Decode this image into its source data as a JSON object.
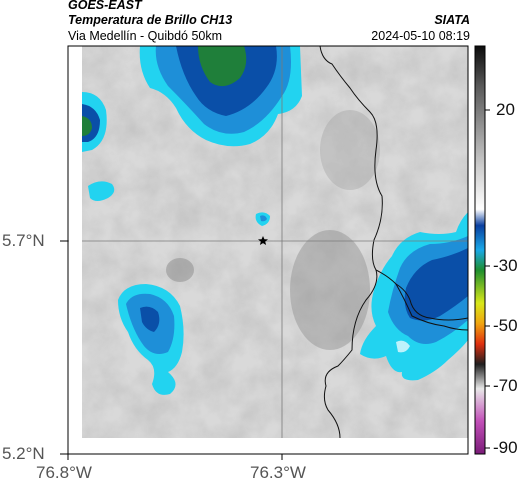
{
  "header": {
    "satellite": "GOES-EAST",
    "product": "Temperatura de Brillo CH13",
    "route": "Via Medellín - Quibdó 50km",
    "agency": "SIATA",
    "datetime": "2024-05-10 08:19"
  },
  "map": {
    "lat_ticks": [
      "5.7°N",
      "5.2°N"
    ],
    "lon_ticks": [
      "76.8°W",
      "76.3°W"
    ],
    "marker": "star"
  },
  "colorbar": {
    "labels": [
      "20",
      "-30",
      "-50",
      "-70",
      "-90"
    ]
  },
  "colors": {
    "deep_cloud": "#0a4fa8",
    "cloud_blue": "#1e8fd8",
    "cloud_cyan": "#22d3f0",
    "cloud_green": "#1f7f3a",
    "background_gray": "#cfcfcf"
  }
}
